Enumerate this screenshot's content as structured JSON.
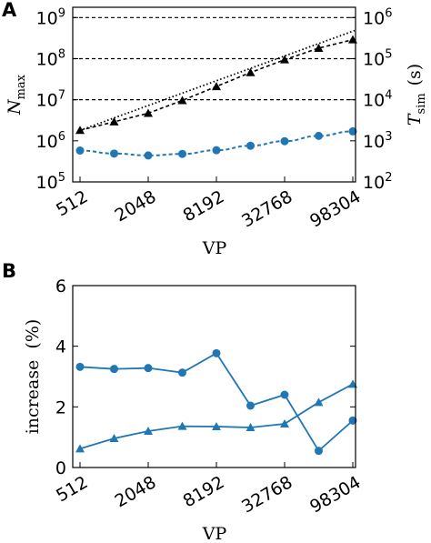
{
  "colors": {
    "blue": "#1f77b4",
    "black": "#000000"
  },
  "chart_data": [
    {
      "panel_label": "A",
      "type": "line",
      "xlabel": "VP",
      "x_ticks": [
        "512",
        "2048",
        "8192",
        "32768",
        "98304"
      ],
      "x": [
        512,
        1024,
        2048,
        4096,
        8192,
        16384,
        32768,
        65536,
        98304
      ],
      "ylabel_left": {
        "base": "N",
        "sub": "max"
      },
      "ylabel_right": {
        "base": "T",
        "sub": "sim",
        "unit": "(s)"
      },
      "y_left_scale": "log",
      "y_left_ticks": [
        {
          "base": "10",
          "exp": "5"
        },
        {
          "base": "10",
          "exp": "6"
        },
        {
          "base": "10",
          "exp": "7"
        },
        {
          "base": "10",
          "exp": "8"
        },
        {
          "base": "10",
          "exp": "9"
        }
      ],
      "y_right_ticks": [
        {
          "base": "10",
          "exp": "2"
        },
        {
          "base": "10",
          "exp": "3"
        },
        {
          "base": "10",
          "exp": "4"
        },
        {
          "base": "10",
          "exp": "5"
        },
        {
          "base": "10",
          "exp": "6"
        }
      ],
      "ylim_left_log10": [
        5,
        9.25
      ],
      "horizontal_dashed_lines_log10": [
        7,
        8,
        9
      ],
      "series": [
        {
          "marker": "triangle",
          "axis": "left",
          "color": "#000000",
          "values": [
            1800000.0,
            2900000.0,
            4700000.0,
            9600000.0,
            21000000.0,
            46000000.0,
            94000000.0,
            180000000.0,
            290000000.0
          ]
        },
        {
          "marker": "circle",
          "axis": "right",
          "color": "#1f77b4",
          "values": [
            580,
            490,
            440,
            480,
            590,
            760,
            980,
            1320,
            1700
          ]
        }
      ]
    },
    {
      "panel_label": "B",
      "type": "line",
      "xlabel": "VP",
      "x_ticks": [
        "512",
        "2048",
        "8192",
        "32768",
        "98304"
      ],
      "x": [
        512,
        1024,
        2048,
        4096,
        8192,
        16384,
        32768,
        65536,
        98304
      ],
      "ylabel": "increase  (%)",
      "y_ticks": [
        "0",
        "2",
        "4",
        "6"
      ],
      "ylim": [
        0,
        6
      ],
      "series": [
        {
          "marker": "circle",
          "color": "#1f77b4",
          "values": [
            3.32,
            3.25,
            3.28,
            3.13,
            3.77,
            2.04,
            2.4,
            0.55,
            1.55
          ]
        },
        {
          "marker": "triangle",
          "color": "#1f77b4",
          "values": [
            0.62,
            0.96,
            1.2,
            1.36,
            1.35,
            1.32,
            1.44,
            2.15,
            2.75
          ]
        }
      ]
    }
  ]
}
